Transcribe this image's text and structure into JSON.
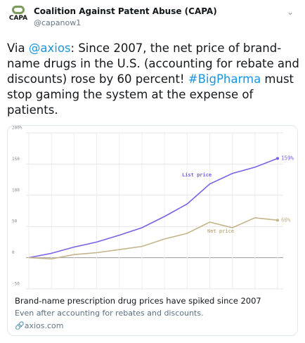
{
  "header": {
    "logo": "CAPA",
    "name": "Coalition Against Patent Abuse (CAPA)",
    "handle": "@capanow1"
  },
  "tweet": {
    "segments": [
      "Via ",
      "@axios",
      ": Since 2007, the net price of brand-name drugs in the U.S. (accounting for rebate and discounts) rose by 60 percent! ",
      "#BigPharma",
      " must stop gaming the system at the expense of patients."
    ]
  },
  "chart_data": {
    "type": "line",
    "categories": [
      null,
      null,
      null,
      null,
      null,
      null,
      null,
      null,
      null,
      null,
      null,
      null
    ],
    "series": [
      {
        "name": "List price",
        "color": "#7b5fe6",
        "values": [
          0,
          7,
          17,
          25,
          36,
          48,
          66,
          86,
          118,
          135,
          145,
          159
        ],
        "value_labels": [
          null,
          null,
          null,
          null,
          null,
          null,
          null,
          null,
          null,
          null,
          null,
          "159%"
        ]
      },
      {
        "name": "Net price",
        "color": "#c4b48a",
        "values": [
          0,
          -2,
          5,
          8,
          13,
          18,
          30,
          39,
          57,
          48,
          64,
          60
        ],
        "value_labels": [
          null,
          null,
          null,
          null,
          null,
          null,
          null,
          null,
          null,
          null,
          null,
          "60%"
        ]
      }
    ],
    "ylim": [
      -50,
      200
    ],
    "yticks": [
      {
        "value": 200,
        "label": "200%"
      },
      150,
      100,
      50,
      0,
      -50
    ],
    "grid": true
  },
  "card": {
    "title": "Brand-name prescription drug prices have spiked since 2007",
    "description": "Even after accounting for rebates and discounts.",
    "domain": "axios.com"
  }
}
